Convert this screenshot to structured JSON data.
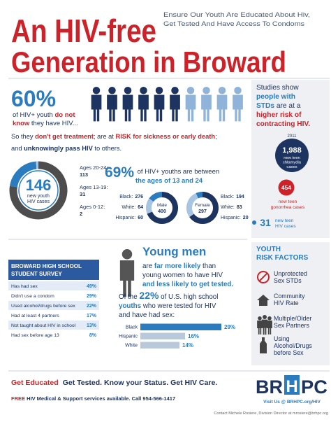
{
  "header": {
    "title": [
      "An HIV-free",
      "Generation in Broward"
    ],
    "tagline": [
      "Ensure Our Youth Are Educated About Hiv,",
      "Get Tested And Have Access To Condoms"
    ]
  },
  "unaware": {
    "value": 60,
    "value_label": "60%",
    "lines": [
      [
        "of HIV+ youth ",
        "do not"
      ],
      [
        "know",
        " they have HIV..."
      ]
    ],
    "colors": [
      "#1d3461",
      "#8fb3d9"
    ],
    "consequences": [
      [
        "So they ",
        "don't get treatment",
        "; are at ",
        "RISK for sickness or early death",
        ";"
      ],
      [
        "and ",
        "unknowingly pass HIV",
        " to others."
      ]
    ]
  },
  "studies": {
    "lines": [
      [
        "Studies show"
      ],
      [
        "people with"
      ],
      [
        "STDs",
        " are at a"
      ],
      [
        "higher risk of"
      ],
      [
        "contracting HIV."
      ]
    ]
  },
  "teen_cases": {
    "year": "2011",
    "cases": [
      {
        "value": 1988,
        "value_label": "1,988",
        "label": [
          "new teen",
          "chlamydia",
          "cases"
        ],
        "color": "#1d3461"
      },
      {
        "value": 454,
        "label": [
          "new teen",
          "gonorrhea cases"
        ],
        "color": "#cc2229"
      },
      {
        "value": 31,
        "label": [
          "new teen",
          "HIV cases"
        ],
        "color": "#2b7bbf"
      }
    ]
  },
  "youth_cases": {
    "total": 146,
    "caption": [
      "new youth",
      "HIV cases"
    ],
    "groups": [
      {
        "label": "Ages 20-24:",
        "value": 113,
        "color": "#4d4d4d"
      },
      {
        "label": "Ages 13-19:",
        "value": 31,
        "color": "#2b7bbf"
      },
      {
        "label": "Ages 0-12:",
        "value": 2,
        "color": "#a7c4e2"
      }
    ]
  },
  "ages": {
    "percent": "69%",
    "lines": [
      " of HIV+ youths are between",
      "the ages of 13 and 24"
    ],
    "colors": [
      "#1d3461",
      "#a7c4e2",
      "#2b7bbf"
    ],
    "charts": [
      {
        "name": "Male",
        "total": 400,
        "segments": [
          {
            "label": "Black:",
            "value": 276
          },
          {
            "label": "White:",
            "value": 64
          },
          {
            "label": "Hispanic:",
            "value": 60
          }
        ]
      },
      {
        "name": "Female",
        "total": 297,
        "segments": [
          {
            "label": "Black:",
            "value": 194
          },
          {
            "label": "White:",
            "value": 83
          },
          {
            "label": "Hispanic:",
            "value": 20
          }
        ]
      }
    ]
  },
  "survey": {
    "title": [
      "BROWARD HIGH SCHOOL",
      "STUDENT SURVEY"
    ],
    "rows": [
      {
        "label": "Has had sex",
        "value": "49%"
      },
      {
        "label": "Didn't use a condom",
        "value": "29%"
      },
      {
        "label": "Used alcohol/drugs before sex",
        "value": "22%"
      },
      {
        "label": "Had at least 4 partners",
        "value": "17%"
      },
      {
        "label": "Not taught about HIV in school",
        "value": "13%"
      },
      {
        "label": "Had sex before age 13",
        "value": "8%"
      }
    ]
  },
  "young_men": {
    "heading": "Young men",
    "lines": [
      [
        "are ",
        "far more likely",
        " than"
      ],
      [
        "young women to have HIV"
      ],
      [
        "and less likely to get tested."
      ]
    ]
  },
  "tested": {
    "lines": [
      [
        "Of the ",
        "22%",
        " of U.S. high school"
      ],
      [
        "youths",
        " who were tested for HIV"
      ],
      [
        "and have had sex:"
      ]
    ],
    "categories": [
      "Black",
      "Hispanic",
      "White"
    ],
    "values": [
      29,
      16,
      14
    ],
    "value_labels": [
      "29%",
      "16%",
      "14%"
    ],
    "colors": [
      "#2b7bbf",
      "#b8c9dc",
      "#b8c9dc"
    ]
  },
  "risk": {
    "title": [
      "YOUTH",
      "RISK FACTORS"
    ],
    "items": [
      [
        "Unprotected",
        "Sex STDs"
      ],
      [
        "Community",
        "HIV Rate"
      ],
      [
        "Multiple/Older",
        "Sex Partners"
      ],
      [
        "Using",
        "Alcohol/Drugs",
        "before Sex"
      ]
    ]
  },
  "footer": {
    "slogan": [
      "Get Educated",
      "Get Tested. Know your Status. Get HIV Care."
    ],
    "services": [
      "FREE",
      " HIV Medical & Support services available. Call 954-566-1417"
    ],
    "logo": [
      "BR",
      "H",
      "PC"
    ],
    "visit": "Visit Us @ BRHPC.org/HIV",
    "contact": "Contact Michele Rosiere, Division Director at mrosiere@brhpc.org"
  }
}
